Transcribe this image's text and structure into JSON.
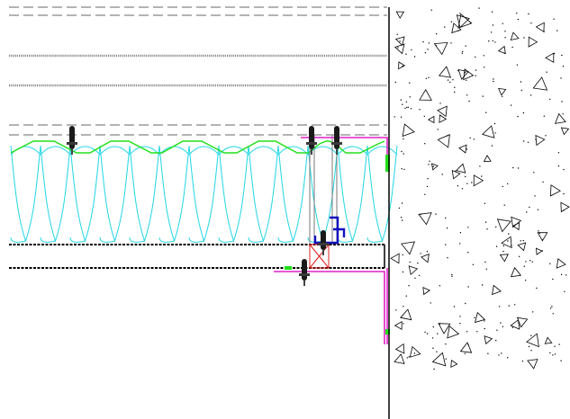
{
  "drawing": {
    "colors": {
      "background": "#ffffff",
      "linework": "#000000",
      "dashed_lines": "#9a9a9a",
      "hatched_lines": "#8c8c8c",
      "insulation": "#22d6e6",
      "profiled_sheet": "#22e01a",
      "flashing": "#e020c8",
      "bracket": "#1010c0",
      "timber_block": "#e02020",
      "fastener": "#1a1a1a",
      "concrete_marks": "#000000"
    },
    "legend_items": [],
    "labels": []
  }
}
